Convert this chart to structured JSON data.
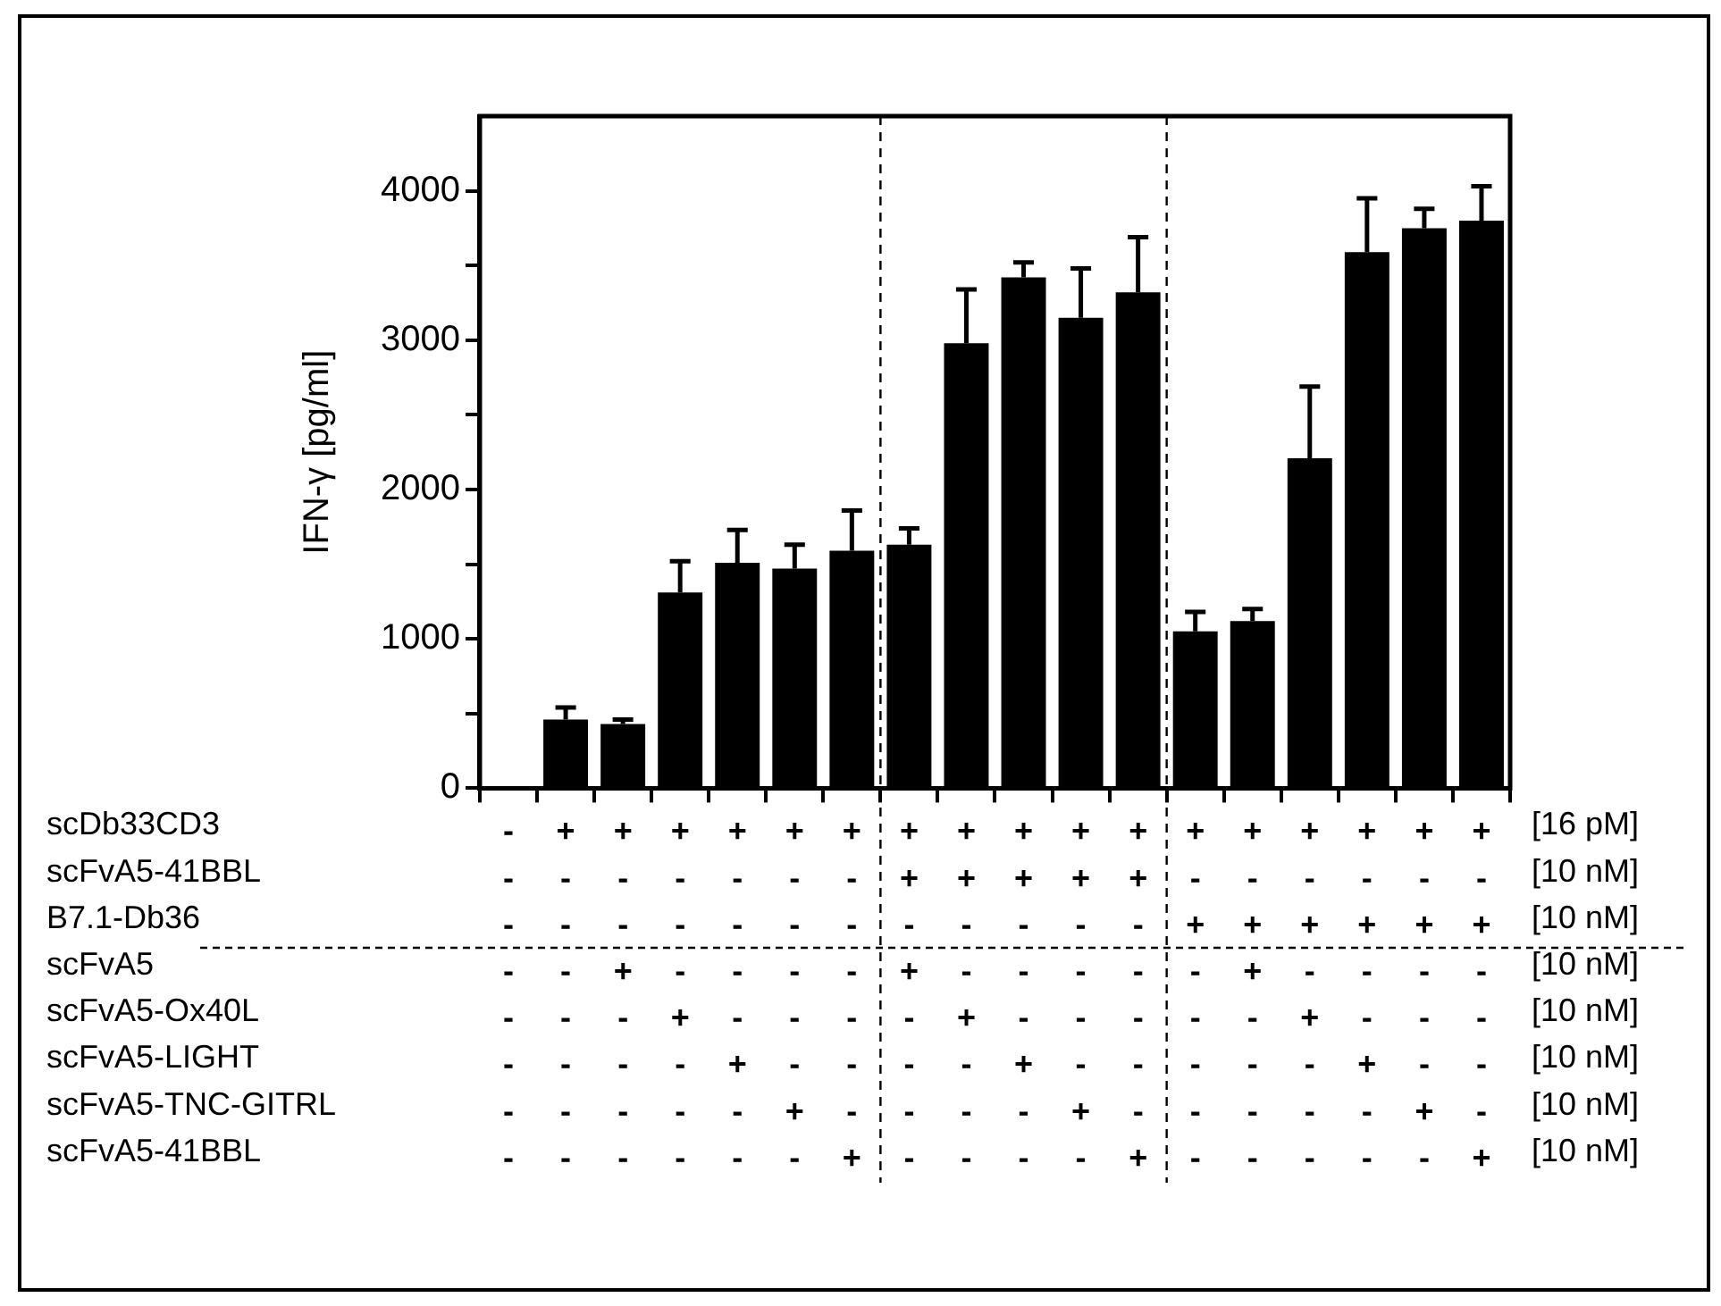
{
  "chart_data": {
    "type": "bar",
    "ylabel": "IFN-γ [pg/ml]",
    "categories": [
      "- - - - - - - -",
      "+ - - - - - - -",
      "+ - - + - - - -",
      "+ - - - + - - -",
      "+ - - - - + - -",
      "+ - - - - - + -",
      "+ - - - - - - +",
      "+ + - + - - - -",
      "+ + - - + - - -",
      "+ + - - - + - -",
      "+ + - - - - + -",
      "+ + - - - - - +",
      "+ - + - - - - -",
      "+ - + + - - - -",
      "+ - + - + - - -",
      "+ - + - - + - -",
      "+ - + - - - + -",
      "+ - + - - - - +"
    ],
    "values": [
      10,
      460,
      430,
      1310,
      1510,
      1470,
      1590,
      1630,
      2980,
      3420,
      3150,
      3320,
      1050,
      1120,
      2210,
      3590,
      3750,
      3800
    ],
    "errors": [
      null,
      [
        460,
        540
      ],
      [
        430,
        460
      ],
      [
        1310,
        1520
      ],
      [
        1510,
        1730
      ],
      [
        1470,
        1630
      ],
      [
        1590,
        1860
      ],
      [
        1630,
        1740
      ],
      [
        2980,
        3340
      ],
      [
        3420,
        3520
      ],
      [
        3150,
        3480
      ],
      [
        3320,
        3690
      ],
      [
        1050,
        1180
      ],
      [
        1120,
        1200
      ],
      [
        2210,
        2690
      ],
      [
        3590,
        3950
      ],
      [
        3750,
        3880
      ],
      [
        3800,
        4030
      ]
    ],
    "color": "#000000",
    "ylim": [
      0,
      4500
    ],
    "yticks": [
      0,
      {
        "value": 500,
        "label": null
      },
      1000,
      {
        "value": 1500,
        "label": null
      },
      2000,
      {
        "value": 2500,
        "label": null
      },
      3000,
      {
        "value": 3500,
        "label": null
      },
      4000
    ],
    "grid": false,
    "legend": false,
    "annotations": [
      "scDb33CD3",
      "[16 pM]",
      "scFvA5-41BBL",
      "[10 nM]",
      "B7.1-Db36",
      "[10 nM]",
      "scFvA5",
      "[10 nM]",
      "scFvA5-Ox40L",
      "[10 nM]",
      "scFvA5-LIGHT",
      "[10 nM]",
      "scFvA5-TNC-GITRL",
      "[10 nM]",
      "scFvA5-41BBL",
      "[10 nM]"
    ]
  }
}
